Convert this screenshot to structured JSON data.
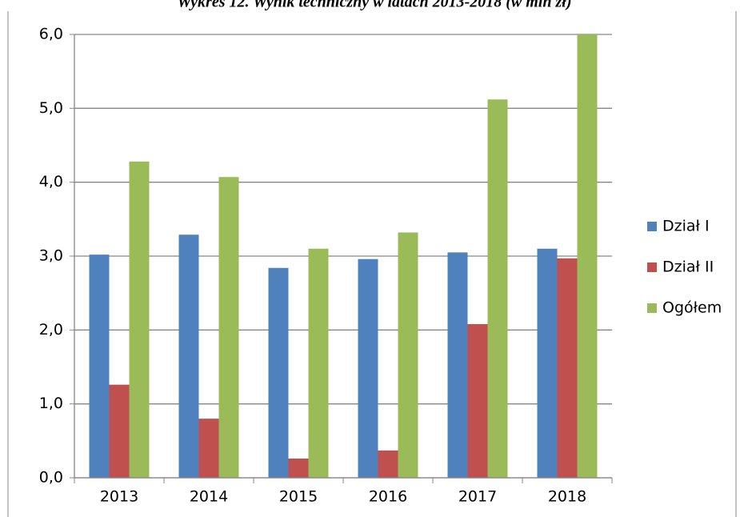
{
  "chart_data": {
    "type": "bar",
    "title": "Wykres 12. Wynik techniczny w latach 2013-2018 (w mln zł)",
    "categories": [
      "2013",
      "2014",
      "2015",
      "2016",
      "2017",
      "2018"
    ],
    "series": [
      {
        "name": "Dział I",
        "color": "#4f81bd",
        "values": [
          3.02,
          3.29,
          2.84,
          2.96,
          3.05,
          3.1
        ]
      },
      {
        "name": "Dział II",
        "color": "#c0504d",
        "values": [
          1.26,
          0.8,
          0.26,
          0.37,
          2.08,
          2.97
        ]
      },
      {
        "name": "Ogółem",
        "color": "#9bbb59",
        "values": [
          4.28,
          4.07,
          3.1,
          3.32,
          5.12,
          6.0
        ]
      }
    ],
    "ylim": [
      0,
      6
    ],
    "yticks": [
      {
        "value": 0,
        "label": "0,0"
      },
      {
        "value": 1,
        "label": "1,0"
      },
      {
        "value": 2,
        "label": "2,0"
      },
      {
        "value": 3,
        "label": "3,0"
      },
      {
        "value": 4,
        "label": "4,0"
      },
      {
        "value": 5,
        "label": "5,0"
      },
      {
        "value": 6,
        "label": "6,0"
      }
    ],
    "grid": true,
    "legend": "right"
  }
}
